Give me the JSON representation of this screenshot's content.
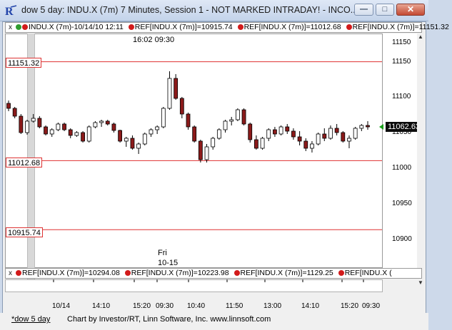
{
  "window": {
    "title": "dow 5 day: INDU.X (7m) 7 Minutes, Session 1 - NOT MARKED INTRADAY! - INCO...",
    "minimize_label": "—",
    "maximize_label": "□",
    "close_label": "✕"
  },
  "ref_bar_top": {
    "close_label": "x",
    "items": [
      {
        "text": "INDU.X (7m)-10/14/10 12:11",
        "dot": "#2e9c2e"
      },
      {
        "text": "REF[INDU.X (7m)]=10915.74",
        "dot": "#d21a1a"
      },
      {
        "text": "REF[INDU.X (7m)]=11012.68",
        "dot": "#d21a1a"
      },
      {
        "text": "REF[INDU.X (7m)]=11151.32",
        "dot": "#d21a1a"
      }
    ]
  },
  "ref_bar_bottom": {
    "close_label": "x",
    "items": [
      {
        "text": "REF[INDU.X (7m)]=10294.08",
        "dot": "#d21a1a"
      },
      {
        "text": "REF[INDU.X (7m)]=10223.98",
        "dot": "#d21a1a"
      },
      {
        "text": "REF[INDU.X (7m)]=1129.25",
        "dot": "#d21a1a"
      },
      {
        "text": "REF[INDU.X (",
        "dot": "#d21a1a"
      }
    ]
  },
  "chart_labels": {
    "session_time": "16:02  09:30",
    "fri": "Fri",
    "fri_date": "10-15"
  },
  "levels": [
    {
      "label": "11151.32",
      "value": 11151.32
    },
    {
      "label": "11012.68",
      "value": 11012.68
    },
    {
      "label": "10915.74",
      "value": 10915.74
    }
  ],
  "last_price": "11062.63",
  "y_ticks": [
    "11150",
    "11100",
    "11050",
    "11000",
    "10950",
    "10900"
  ],
  "y_tick_values": [
    11150,
    11100,
    11050,
    11000,
    10950,
    10900
  ],
  "x_ticks": [
    "10/14",
    "14:10",
    "15:20",
    "09:30",
    "10:40",
    "11:50",
    "13:00",
    "14:10",
    "15:20",
    "09:30"
  ],
  "status": {
    "tab": "*dow 5 day",
    "text": "Chart by Investor/RT, Linn Software, Inc. www.linnsoft.com"
  },
  "colors": {
    "up_candle": "#ffffff",
    "down_candle": "#8b1a1a",
    "level_line": "#e03030",
    "last_arrow": "#1aa01a"
  },
  "chart_data": {
    "type": "candlestick",
    "title": "INDU.X (7m) 7 Minutes",
    "ylim": [
      10870,
      11180
    ],
    "candles": [
      [
        11093,
        11097,
        11082,
        11086
      ],
      [
        11086,
        11088,
        11072,
        11075
      ],
      [
        11075,
        11078,
        11050,
        11052
      ],
      [
        11052,
        11070,
        11049,
        11068
      ],
      [
        11068,
        11078,
        11066,
        11072
      ],
      [
        11072,
        11075,
        11058,
        11060
      ],
      [
        11060,
        11062,
        11048,
        11050
      ],
      [
        11050,
        11058,
        11046,
        11056
      ],
      [
        11056,
        11066,
        11054,
        11064
      ],
      [
        11064,
        11066,
        11054,
        11056
      ],
      [
        11056,
        11058,
        11044,
        11048
      ],
      [
        11048,
        11054,
        11046,
        11052
      ],
      [
        11052,
        11054,
        11038,
        11040
      ],
      [
        11040,
        11062,
        11038,
        11060
      ],
      [
        11060,
        11068,
        11058,
        11066
      ],
      [
        11066,
        11070,
        11060,
        11068
      ],
      [
        11068,
        11070,
        11062,
        11064
      ],
      [
        11064,
        11066,
        11052,
        11055
      ],
      [
        11055,
        11056,
        11038,
        11040
      ],
      [
        11040,
        11046,
        11032,
        11044
      ],
      [
        11044,
        11048,
        11028,
        11030
      ],
      [
        11030,
        11038,
        11022,
        11036
      ],
      [
        11036,
        11052,
        11034,
        11050
      ],
      [
        11050,
        11058,
        11046,
        11056
      ],
      [
        11056,
        11062,
        11050,
        11060
      ],
      [
        11060,
        11088,
        11058,
        11086
      ],
      [
        11086,
        11138,
        11084,
        11128
      ],
      [
        11128,
        11134,
        11098,
        11100
      ],
      [
        11100,
        11102,
        11072,
        11078
      ],
      [
        11078,
        11080,
        11056,
        11060
      ],
      [
        11060,
        11062,
        11038,
        11040
      ],
      [
        11040,
        11042,
        11010,
        11014
      ],
      [
        11014,
        11036,
        11010,
        11032
      ],
      [
        11032,
        11046,
        11028,
        11044
      ],
      [
        11044,
        11058,
        11042,
        11056
      ],
      [
        11056,
        11070,
        11052,
        11068
      ],
      [
        11068,
        11074,
        11062,
        11070
      ],
      [
        11070,
        11086,
        11068,
        11084
      ],
      [
        11084,
        11086,
        11062,
        11064
      ],
      [
        11064,
        11066,
        11038,
        11042
      ],
      [
        11042,
        11048,
        11028,
        11030
      ],
      [
        11030,
        11046,
        11028,
        11044
      ],
      [
        11044,
        11058,
        11040,
        11056
      ],
      [
        11056,
        11060,
        11046,
        11050
      ],
      [
        11050,
        11062,
        11048,
        11060
      ],
      [
        11060,
        11064,
        11050,
        11054
      ],
      [
        11054,
        11058,
        11042,
        11046
      ],
      [
        11046,
        11054,
        11034,
        11040
      ],
      [
        11040,
        11044,
        11026,
        11030
      ],
      [
        11030,
        11040,
        11024,
        11036
      ],
      [
        11036,
        11052,
        11034,
        11050
      ],
      [
        11050,
        11058,
        11040,
        11044
      ],
      [
        11044,
        11062,
        11042,
        11058
      ],
      [
        11058,
        11064,
        11048,
        11052
      ],
      [
        11052,
        11054,
        11038,
        11040
      ],
      [
        11040,
        11048,
        11030,
        11044
      ],
      [
        11044,
        11060,
        11042,
        11058
      ],
      [
        11058,
        11064,
        11054,
        11062
      ],
      [
        11062,
        11068,
        11056,
        11060
      ]
    ]
  }
}
